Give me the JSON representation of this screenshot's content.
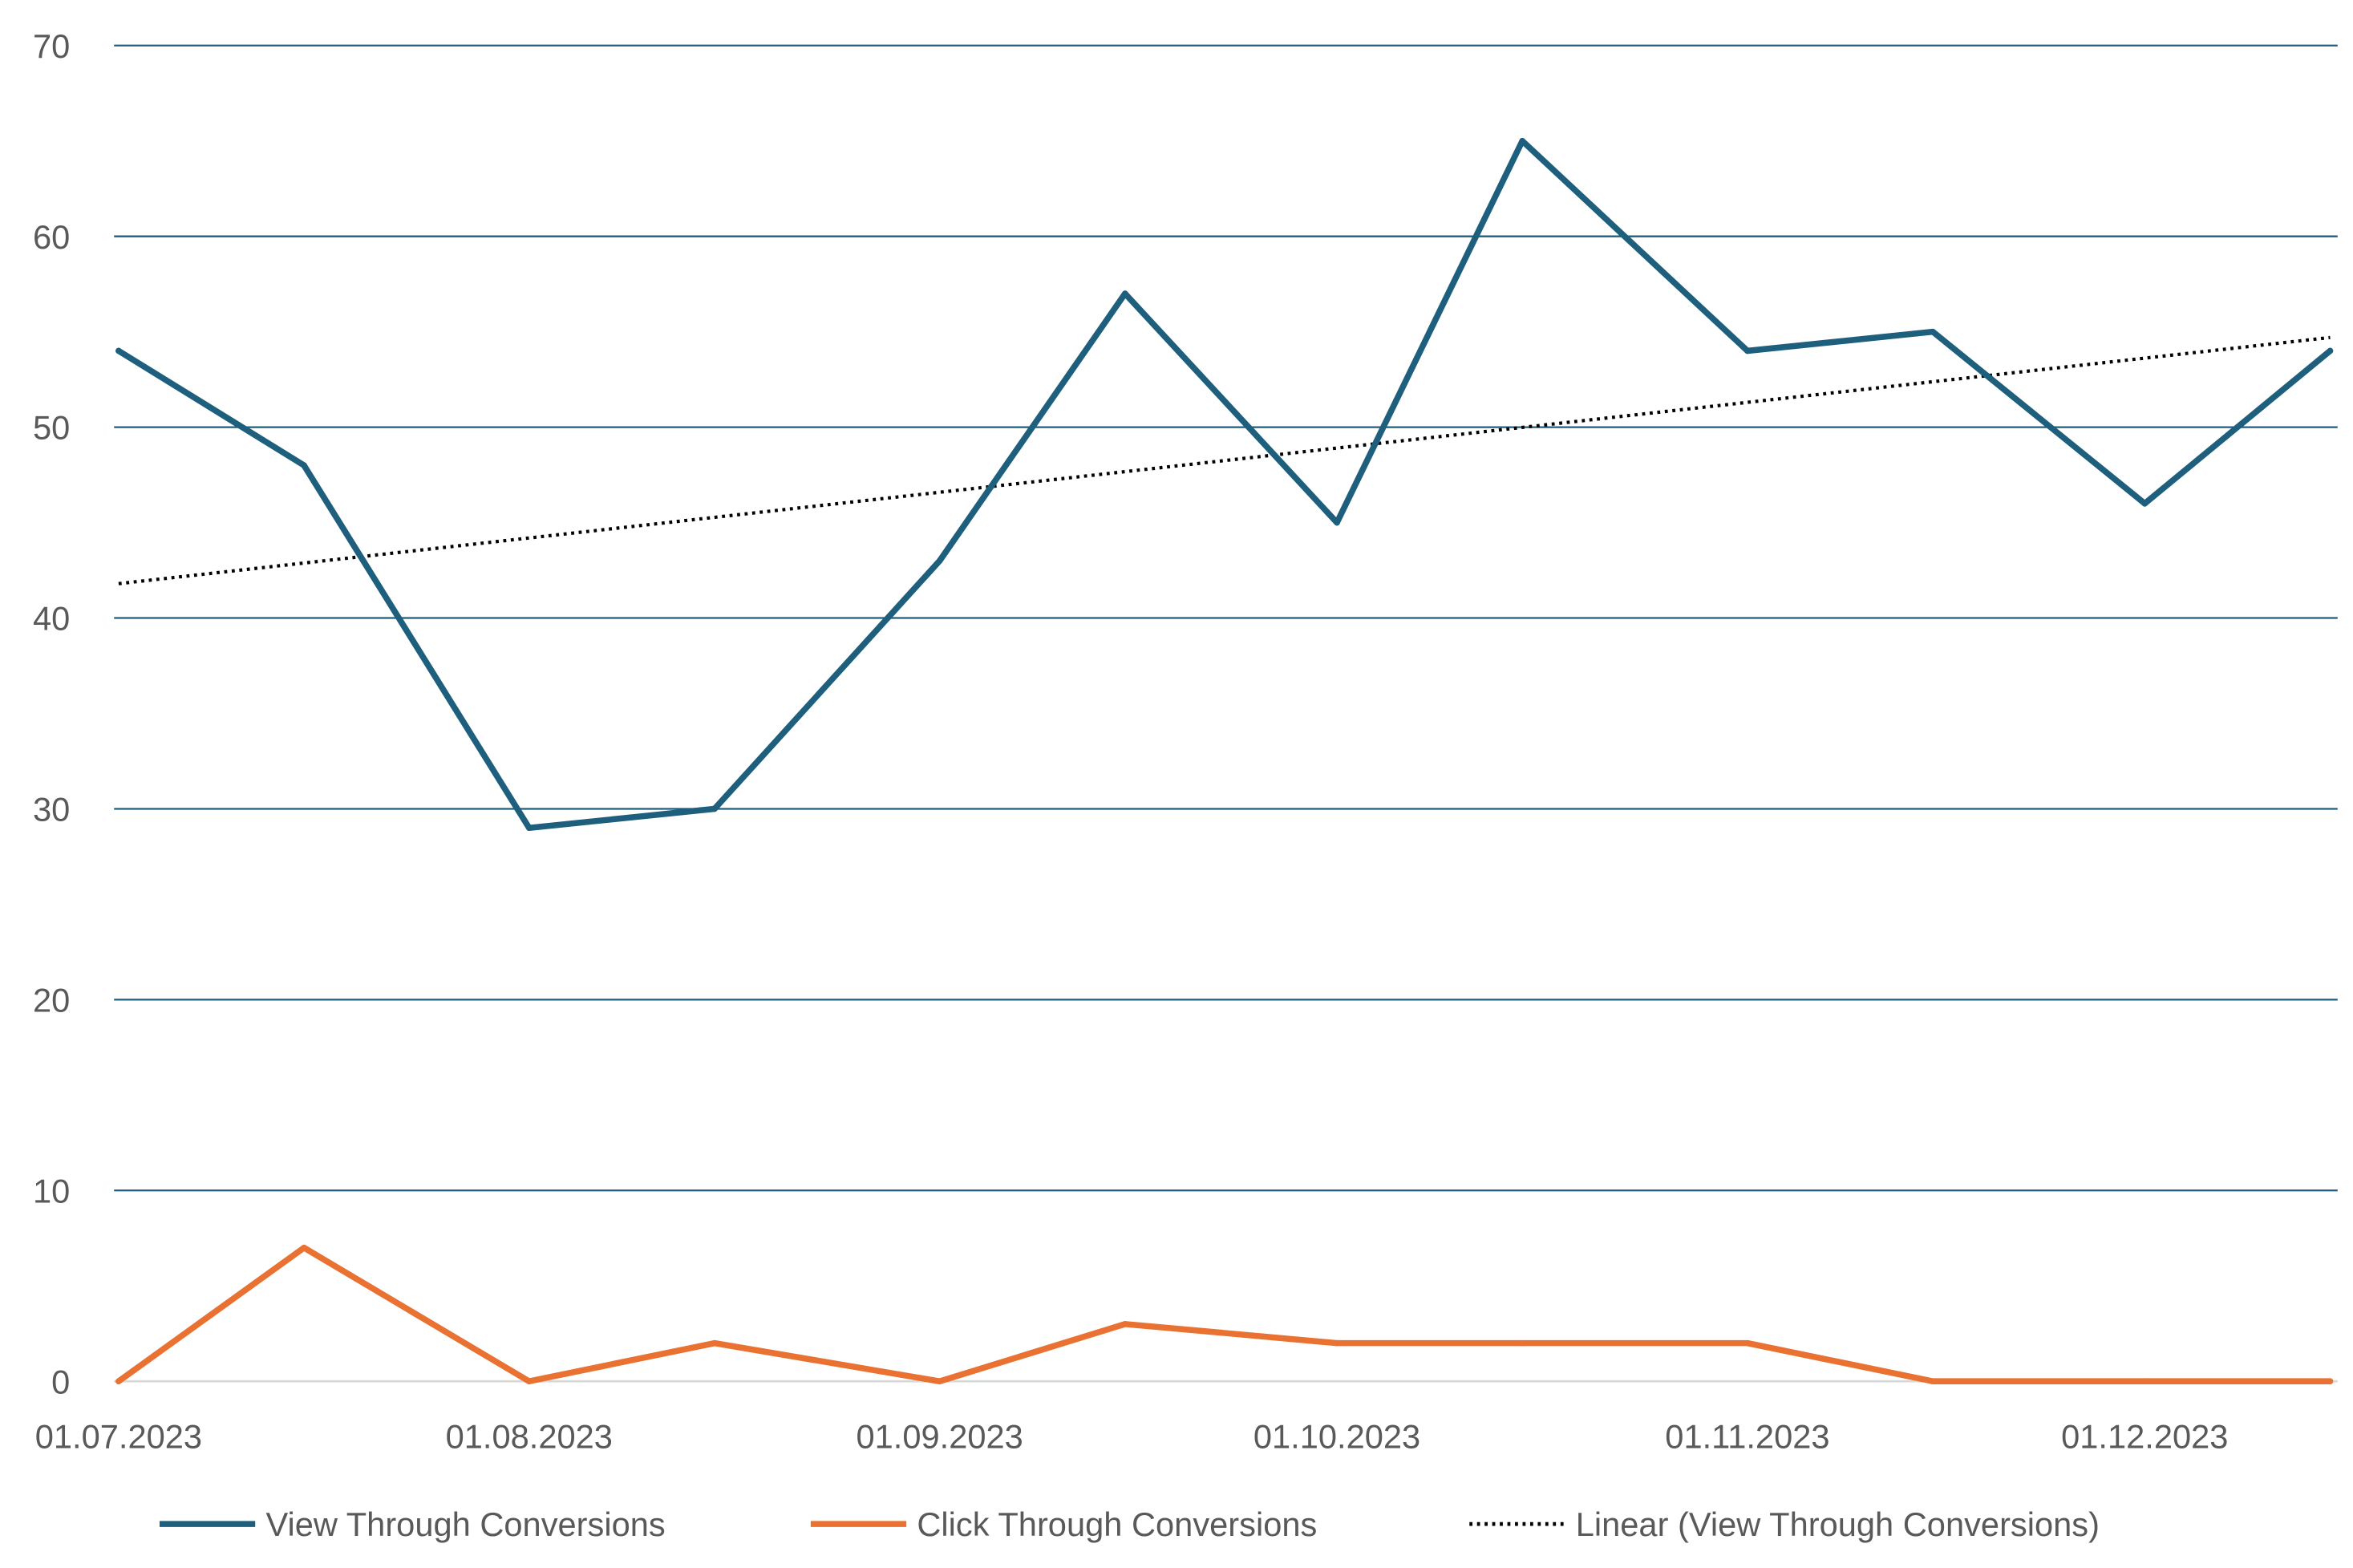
{
  "chart_data": {
    "type": "line",
    "title": "",
    "xlabel": "",
    "ylabel": "",
    "ylim": [
      0,
      70
    ],
    "yticks": [
      "0",
      "10",
      "20",
      "30",
      "40",
      "50",
      "60",
      "70"
    ],
    "xticks": [
      "01.07.2023",
      "01.08.2023",
      "01.09.2023",
      "01.10.2023",
      "01.11.2023",
      "01.12.2023"
    ],
    "x": [
      "01.07.2023",
      "15.07.2023",
      "01.08.2023",
      "15.08.2023",
      "01.09.2023",
      "15.09.2023",
      "01.10.2023",
      "15.10.2023",
      "01.11.2023",
      "15.11.2023",
      "01.12.2023",
      "15.12.2023"
    ],
    "grid": true,
    "legend_position": "bottom",
    "series": [
      {
        "name": "View Through Conversions",
        "color": "#1F5F7E",
        "values": [
          54,
          48,
          29,
          30,
          43,
          57,
          45,
          65,
          54,
          55,
          46,
          54
        ]
      },
      {
        "name": "Click Through Conversions",
        "color": "#E97132",
        "values": [
          0,
          7,
          0,
          2,
          0,
          3,
          2,
          2,
          2,
          0,
          0,
          0
        ]
      }
    ],
    "trendline": {
      "name": "Linear (View Through Conversions)",
      "color": "#000000",
      "style": "dotted",
      "start": 41.8,
      "end": 54.7
    }
  }
}
